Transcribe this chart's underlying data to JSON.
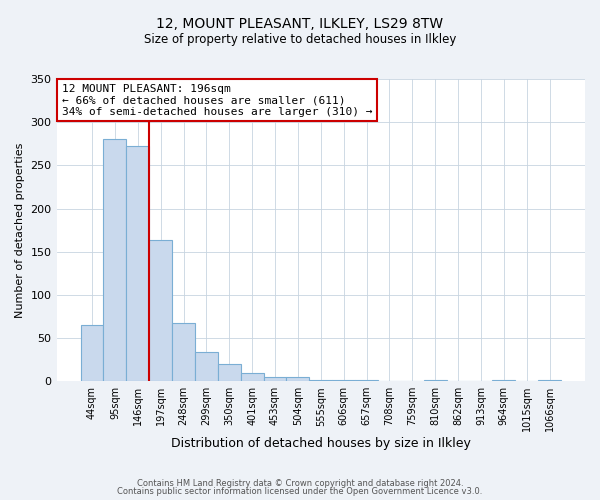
{
  "title": "12, MOUNT PLEASANT, ILKLEY, LS29 8TW",
  "subtitle": "Size of property relative to detached houses in Ilkley",
  "xlabel": "Distribution of detached houses by size in Ilkley",
  "ylabel": "Number of detached properties",
  "bin_labels": [
    "44sqm",
    "95sqm",
    "146sqm",
    "197sqm",
    "248sqm",
    "299sqm",
    "350sqm",
    "401sqm",
    "453sqm",
    "504sqm",
    "555sqm",
    "606sqm",
    "657sqm",
    "708sqm",
    "759sqm",
    "810sqm",
    "862sqm",
    "913sqm",
    "964sqm",
    "1015sqm",
    "1066sqm"
  ],
  "bar_values": [
    65,
    281,
    272,
    163,
    67,
    34,
    20,
    9,
    5,
    5,
    1,
    1,
    1,
    0,
    0,
    1,
    0,
    0,
    1,
    0,
    1
  ],
  "bar_color": "#c9d9ed",
  "bar_edge_color": "#7aaed4",
  "vline_x_idx": 3,
  "vline_color": "#cc0000",
  "annotation_title": "12 MOUNT PLEASANT: 196sqm",
  "annotation_line1": "← 66% of detached houses are smaller (611)",
  "annotation_line2": "34% of semi-detached houses are larger (310) →",
  "annotation_box_color": "#cc0000",
  "ylim": [
    0,
    350
  ],
  "yticks": [
    0,
    50,
    100,
    150,
    200,
    250,
    300,
    350
  ],
  "footer1": "Contains HM Land Registry data © Crown copyright and database right 2024.",
  "footer2": "Contains public sector information licensed under the Open Government Licence v3.0.",
  "bg_color": "#eef2f7",
  "plot_bg_color": "#ffffff"
}
